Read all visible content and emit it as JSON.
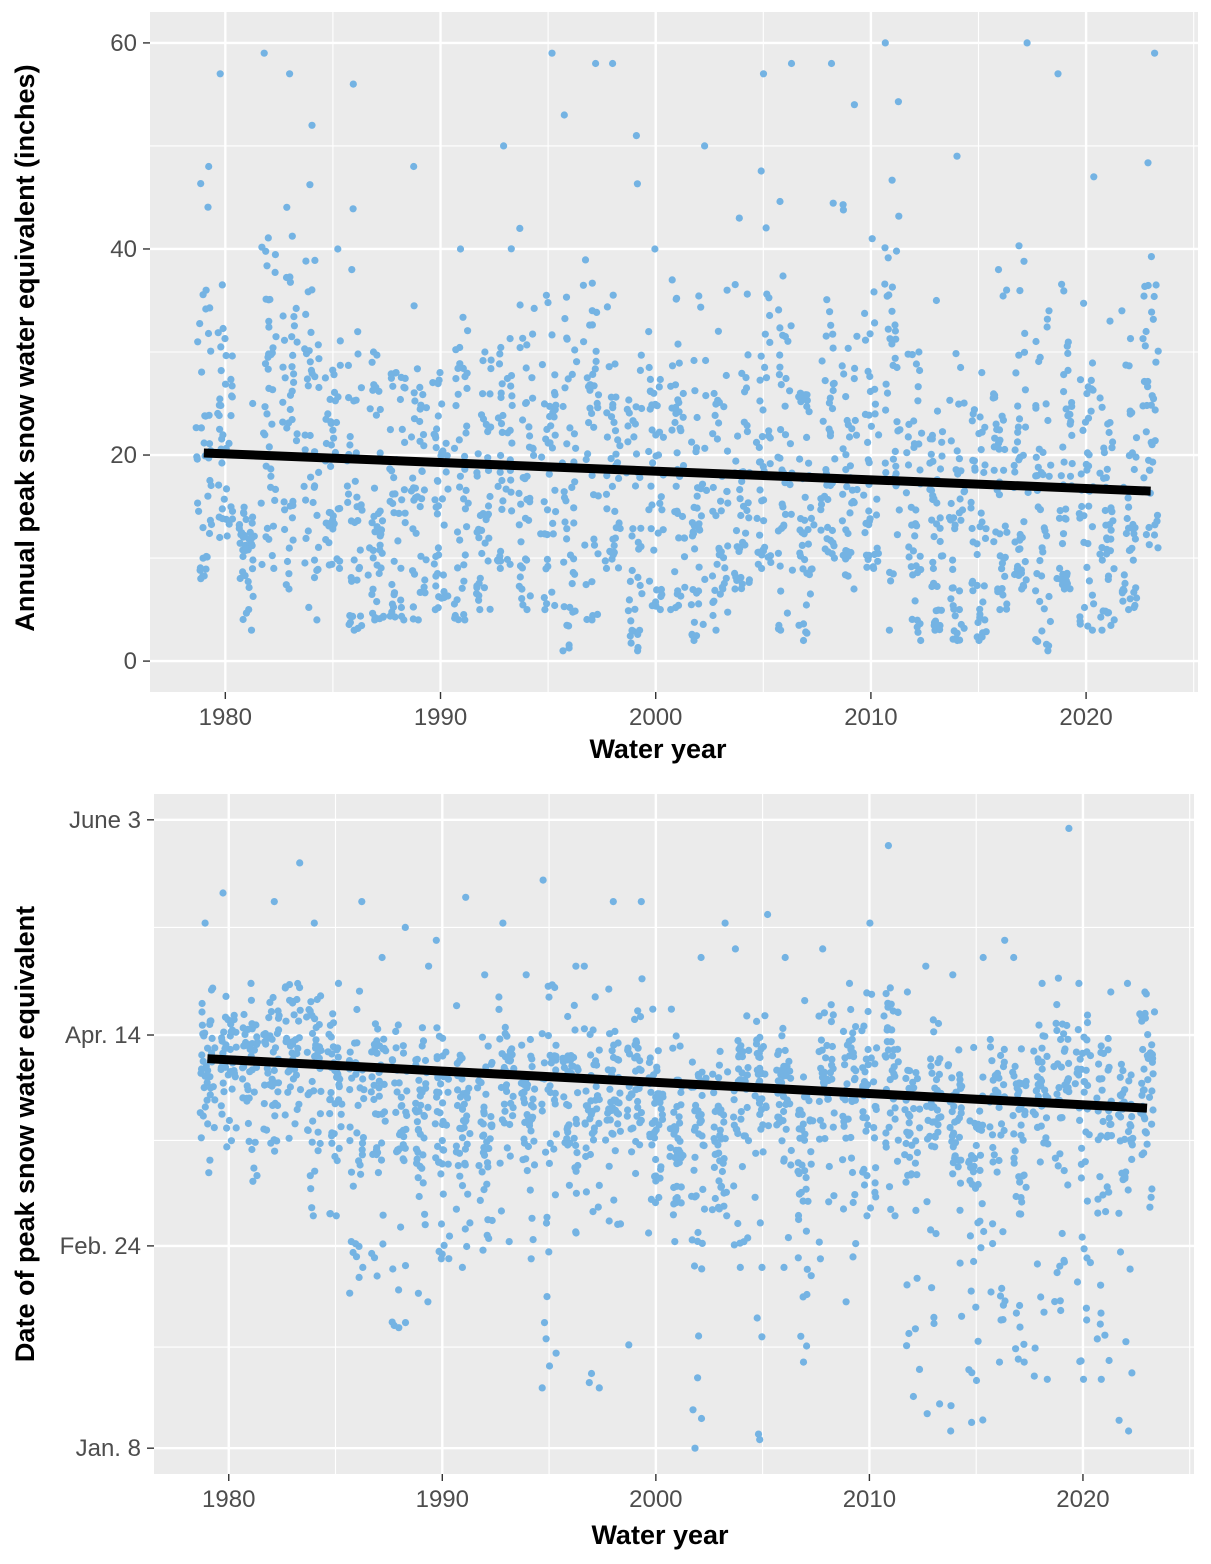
{
  "colors": {
    "point": "#74B3E3",
    "trend": "#000000",
    "panel": "#EBEBEB",
    "grid": "#FFFFFF"
  },
  "chart_data": [
    {
      "type": "scatter",
      "title": "",
      "xlabel": "Water year",
      "ylabel": "Annual peak snow water equivalent (inches)",
      "xlim": [
        1976.5,
        2025.2
      ],
      "ylim": [
        -3,
        63
      ],
      "x_ticks": [
        1980,
        1990,
        2000,
        2010,
        2020
      ],
      "x_tick_labels": [
        "1980",
        "1990",
        "2000",
        "2010",
        "2020"
      ],
      "y_ticks": [
        0,
        20,
        40,
        60
      ],
      "y_tick_labels": [
        "0",
        "20",
        "40",
        "60"
      ],
      "grid": true,
      "trend": {
        "x": [
          1979,
          2023
        ],
        "y": [
          20.2,
          16.5
        ]
      },
      "year_stats": [
        [
          1979,
          20,
          35,
          8,
          48
        ],
        [
          1980,
          22,
          30,
          12,
          57
        ],
        [
          1981,
          12,
          14,
          3,
          25
        ],
        [
          1982,
          24,
          38,
          9,
          59
        ],
        [
          1983,
          24,
          38,
          7,
          57
        ],
        [
          1984,
          22,
          35,
          4,
          52
        ],
        [
          1985,
          19,
          30,
          9,
          40
        ],
        [
          1986,
          17,
          33,
          3,
          56
        ],
        [
          1987,
          15,
          28,
          4,
          30
        ],
        [
          1988,
          15,
          28,
          4,
          28
        ],
        [
          1989,
          15,
          28,
          4,
          48
        ],
        [
          1990,
          14,
          27,
          5,
          28
        ],
        [
          1991,
          16,
          30,
          4,
          40
        ],
        [
          1992,
          13,
          26,
          5,
          30
        ],
        [
          1993,
          21,
          35,
          9,
          50
        ],
        [
          1994,
          17,
          31,
          5,
          42
        ],
        [
          1995,
          20,
          36,
          5,
          59
        ],
        [
          1996,
          17,
          33,
          1,
          53
        ],
        [
          1997,
          19,
          34,
          4,
          58
        ],
        [
          1998,
          20,
          34,
          9,
          58
        ],
        [
          1999,
          16,
          31,
          1,
          51
        ],
        [
          2000,
          17,
          30,
          5,
          40
        ],
        [
          2001,
          16,
          30,
          5,
          37
        ],
        [
          2002,
          14,
          27,
          2,
          50
        ],
        [
          2003,
          14,
          27,
          3,
          36
        ],
        [
          2004,
          17,
          30,
          7,
          43
        ],
        [
          2005,
          20,
          36,
          9,
          57
        ],
        [
          2006,
          18,
          33,
          3,
          58
        ],
        [
          2007,
          14,
          27,
          2,
          26
        ],
        [
          2008,
          18,
          33,
          10,
          58
        ],
        [
          2009,
          17,
          32,
          7,
          54
        ],
        [
          2010,
          17,
          32,
          9,
          41
        ],
        [
          2011,
          23,
          40,
          3,
          60
        ],
        [
          2012,
          13,
          26,
          2,
          30
        ],
        [
          2013,
          13,
          26,
          3,
          35
        ],
        [
          2014,
          13,
          26,
          2,
          49
        ],
        [
          2015,
          11,
          24,
          2,
          28
        ],
        [
          2016,
          15,
          28,
          5,
          38
        ],
        [
          2017,
          19,
          33,
          7,
          60
        ],
        [
          2018,
          13,
          26,
          1,
          34
        ],
        [
          2019,
          17,
          31,
          7,
          57
        ],
        [
          2020,
          16,
          29,
          3,
          47
        ],
        [
          2021,
          13,
          26,
          3,
          33
        ],
        [
          2022,
          13,
          26,
          5,
          34
        ],
        [
          2023,
          24,
          38,
          11,
          59
        ]
      ]
    },
    {
      "type": "scatter",
      "title": "",
      "xlabel": "Water year",
      "ylabel": "Date of peak snow water equivalent",
      "xlim": [
        1976.5,
        2025.2
      ],
      "ylim": [
        2,
        160
      ],
      "y_unit": "day of year (Jan. 1 = 1)",
      "x_ticks": [
        1980,
        1990,
        2000,
        2010,
        2020
      ],
      "x_tick_labels": [
        "1980",
        "1990",
        "2000",
        "2010",
        "2020"
      ],
      "y_ticks": [
        8,
        55,
        104,
        154
      ],
      "y_tick_labels": [
        "Jan. 8",
        "Feb. 24",
        "Apr. 14",
        "June 3"
      ],
      "grid": true,
      "trend": {
        "x": [
          1979,
          2023
        ],
        "y": [
          98.5,
          87
        ]
      },
      "year_stats": [
        [
          1979,
          98,
          110,
          72,
          130
        ],
        [
          1980,
          98,
          108,
          78,
          137
        ],
        [
          1981,
          97,
          108,
          70,
          116
        ],
        [
          1982,
          101,
          112,
          77,
          135
        ],
        [
          1983,
          102,
          114,
          80,
          144
        ],
        [
          1984,
          100,
          112,
          62,
          130
        ],
        [
          1985,
          94,
          106,
          62,
          116
        ],
        [
          1986,
          90,
          104,
          44,
          135
        ],
        [
          1987,
          92,
          104,
          48,
          122
        ],
        [
          1988,
          90,
          104,
          36,
          129
        ],
        [
          1989,
          88,
          102,
          42,
          120
        ],
        [
          1990,
          88,
          102,
          52,
          126
        ],
        [
          1991,
          88,
          102,
          50,
          136
        ],
        [
          1992,
          86,
          100,
          54,
          118
        ],
        [
          1993,
          94,
          106,
          56,
          130
        ],
        [
          1994,
          88,
          100,
          52,
          118
        ],
        [
          1995,
          96,
          110,
          22,
          140
        ],
        [
          1996,
          90,
          104,
          58,
          120
        ],
        [
          1997,
          90,
          104,
          22,
          120
        ],
        [
          1998,
          92,
          104,
          60,
          135
        ],
        [
          1999,
          94,
          106,
          32,
          135
        ],
        [
          2000,
          86,
          100,
          58,
          110
        ],
        [
          2001,
          82,
          96,
          56,
          110
        ],
        [
          2002,
          84,
          96,
          8,
          122
        ],
        [
          2003,
          84,
          96,
          62,
          130
        ],
        [
          2004,
          90,
          102,
          50,
          124
        ],
        [
          2005,
          92,
          104,
          10,
          132
        ],
        [
          2006,
          94,
          106,
          50,
          122
        ],
        [
          2007,
          78,
          92,
          28,
          112
        ],
        [
          2008,
          96,
          106,
          52,
          124
        ],
        [
          2009,
          94,
          106,
          42,
          116
        ],
        [
          2010,
          94,
          106,
          62,
          130
        ],
        [
          2011,
          100,
          112,
          62,
          148
        ],
        [
          2012,
          84,
          96,
          20,
          114
        ],
        [
          2013,
          88,
          100,
          16,
          120
        ],
        [
          2014,
          84,
          96,
          12,
          118
        ],
        [
          2015,
          80,
          92,
          14,
          122
        ],
        [
          2016,
          88,
          100,
          28,
          126
        ],
        [
          2017,
          86,
          98,
          28,
          122
        ],
        [
          2018,
          92,
          104,
          24,
          116
        ],
        [
          2019,
          96,
          108,
          40,
          152
        ],
        [
          2020,
          92,
          104,
          24,
          116
        ],
        [
          2021,
          86,
          98,
          24,
          114
        ],
        [
          2022,
          86,
          98,
          12,
          116
        ],
        [
          2023,
          98,
          110,
          64,
          114
        ]
      ]
    }
  ]
}
